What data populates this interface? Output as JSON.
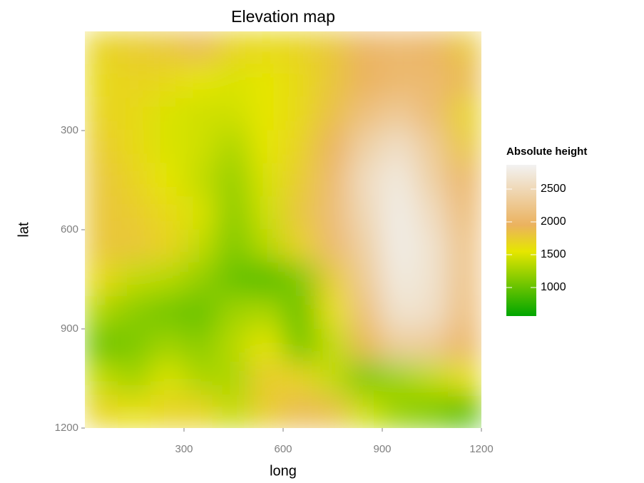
{
  "chart_data": {
    "type": "raster",
    "title": "Elevation map",
    "x_label": "long",
    "y_label": "lat",
    "xlim": [
      0,
      1200
    ],
    "ylim": [
      0,
      1200
    ],
    "y_reversed": true,
    "xticks": [
      300,
      600,
      900,
      1200
    ],
    "yticks": [
      300,
      600,
      900,
      1200
    ],
    "x": [
      50,
      150,
      250,
      350,
      450,
      550,
      650,
      750,
      850,
      950,
      1050,
      1150
    ],
    "y": [
      50,
      150,
      250,
      350,
      450,
      550,
      650,
      750,
      850,
      950,
      1050,
      1150
    ],
    "z": [
      [
        1700,
        1750,
        1800,
        1900,
        1700,
        1650,
        1700,
        1800,
        2000,
        2050,
        2000,
        1800
      ],
      [
        1650,
        1700,
        1650,
        1550,
        1500,
        1550,
        1650,
        1800,
        1950,
        2050,
        2050,
        1900
      ],
      [
        1700,
        1650,
        1500,
        1450,
        1450,
        1550,
        1650,
        1850,
        2150,
        2300,
        2100,
        1700
      ],
      [
        1750,
        1650,
        1500,
        1450,
        1300,
        1550,
        1700,
        1950,
        2400,
        2600,
        2300,
        1800
      ],
      [
        1800,
        1700,
        1550,
        1400,
        1200,
        1500,
        1750,
        2050,
        2550,
        2750,
        2400,
        2000
      ],
      [
        1800,
        1750,
        1650,
        1500,
        1150,
        1450,
        1800,
        2100,
        2500,
        2800,
        2550,
        2100
      ],
      [
        1800,
        1800,
        1700,
        1400,
        1100,
        1350,
        1700,
        2050,
        2400,
        2800,
        2650,
        2200
      ],
      [
        1650,
        1400,
        1350,
        1200,
        1000,
        900,
        1100,
        1750,
        2300,
        2750,
        2650,
        2200
      ],
      [
        1300,
        1150,
        1050,
        1000,
        1250,
        1300,
        1000,
        1600,
        2150,
        2650,
        2600,
        2150
      ],
      [
        1000,
        1100,
        1250,
        1150,
        1350,
        1550,
        1050,
        1400,
        1900,
        2350,
        2300,
        2000
      ],
      [
        1400,
        1250,
        1500,
        1300,
        1300,
        1750,
        1700,
        1400,
        1100,
        1250,
        1400,
        1600
      ],
      [
        1700,
        1600,
        1700,
        1700,
        1400,
        1750,
        1900,
        1850,
        1450,
        1200,
        1100,
        900
      ]
    ],
    "legend_title": "Absolute height",
    "colorbar": {
      "limits": [
        565,
        2870
      ],
      "ticks": [
        1000,
        1500,
        2000,
        2500
      ],
      "stops": [
        {
          "value": 565,
          "color": "#00a600"
        },
        {
          "value": 1550,
          "color": "#e6e600"
        },
        {
          "value": 1950,
          "color": "#ebb25e"
        },
        {
          "value": 2870,
          "color": "#f2f2f2"
        }
      ]
    }
  }
}
